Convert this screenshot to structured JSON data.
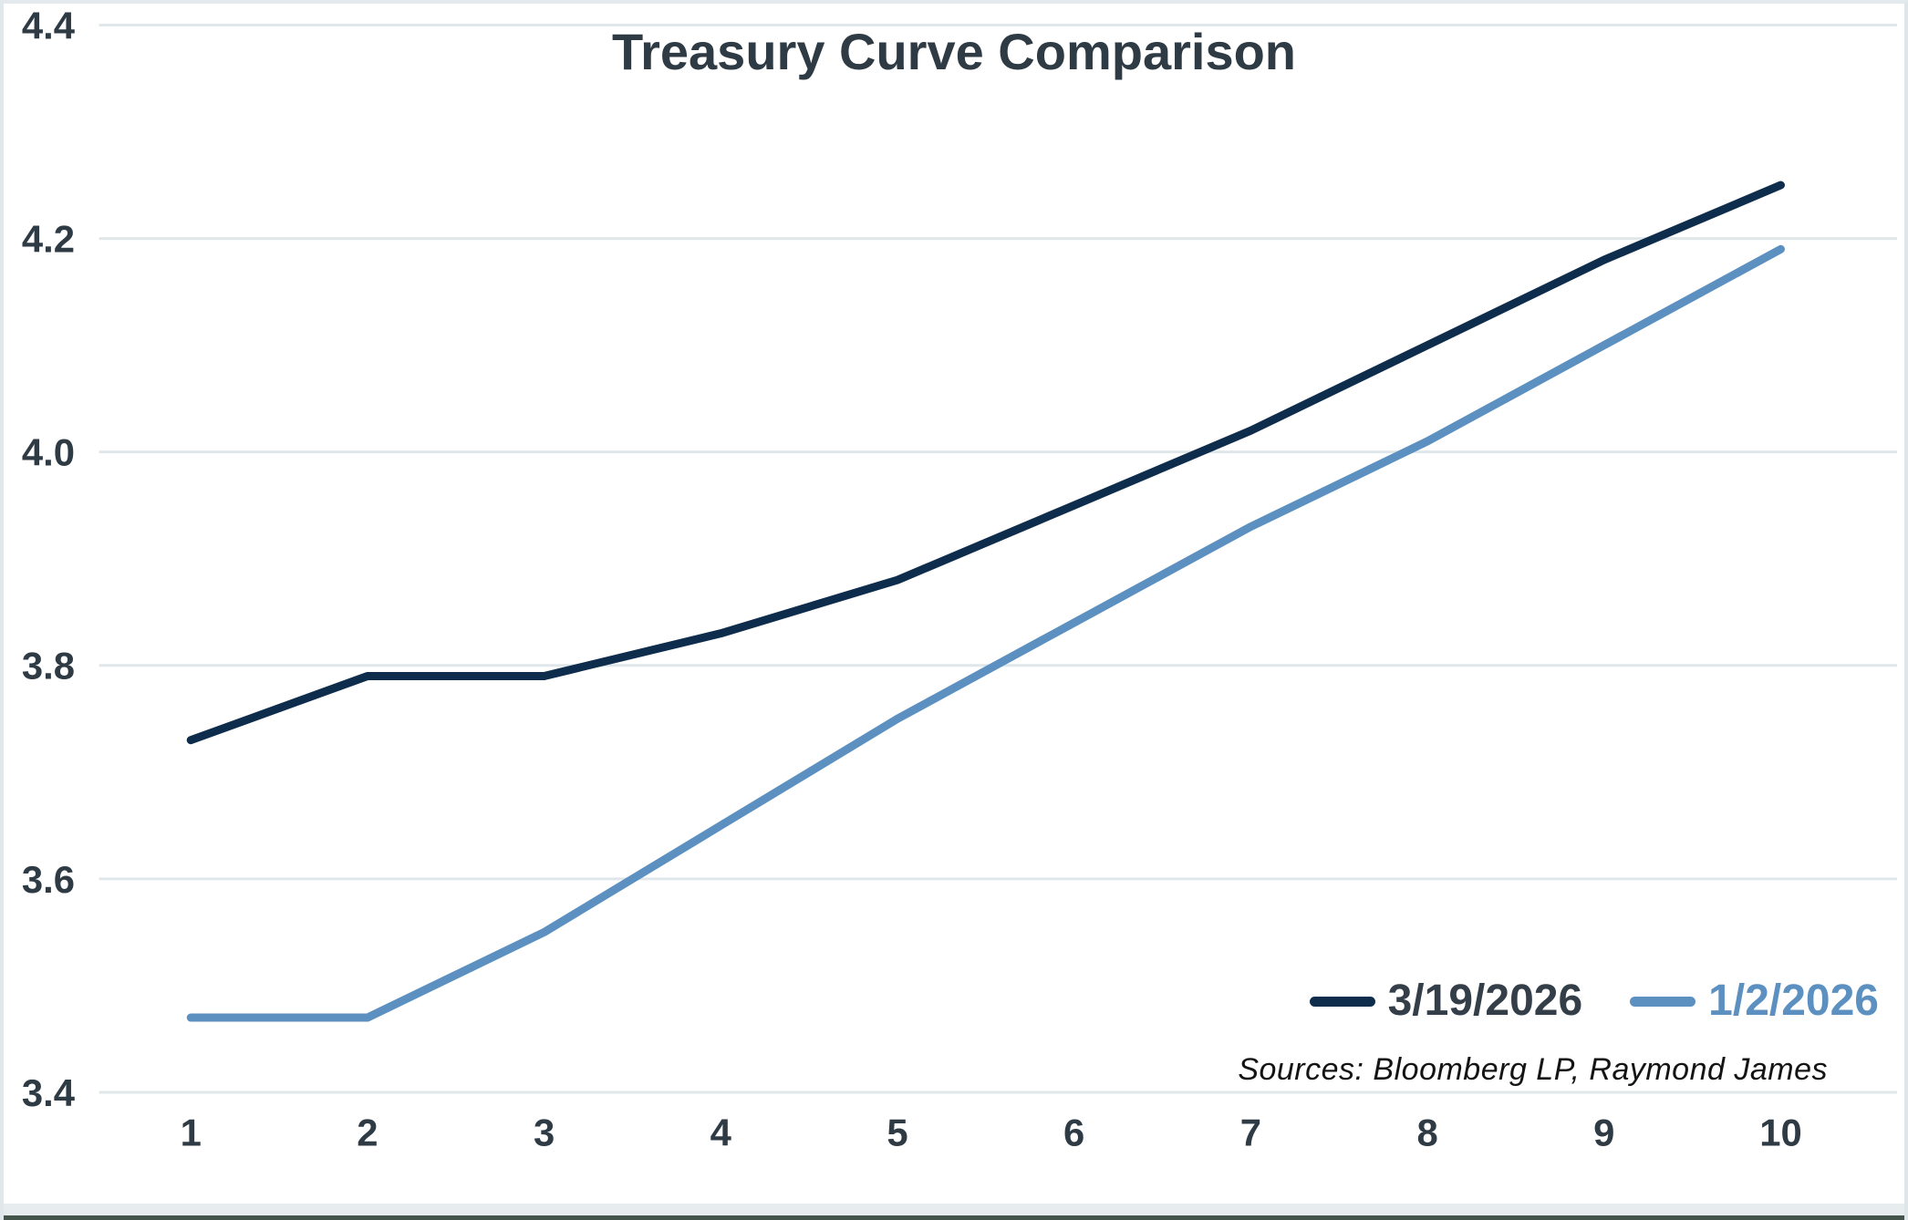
{
  "chart_data": {
    "type": "line",
    "title": "Treasury Curve Comparison",
    "source_note": "Sources: Bloomberg LP, Raymond James",
    "x": [
      1,
      2,
      3,
      4,
      5,
      6,
      7,
      8,
      9,
      10
    ],
    "series": [
      {
        "name": "3/19/2026",
        "color": "#0e2c4c",
        "label_color": "#333e48",
        "values": [
          3.73,
          3.79,
          3.79,
          3.83,
          3.88,
          3.95,
          4.02,
          4.1,
          4.18,
          4.25
        ]
      },
      {
        "name": "1/2/2026",
        "color": "#5c90c0",
        "label_color": "#5c90c0",
        "values": [
          3.47,
          3.47,
          3.55,
          3.65,
          3.75,
          3.84,
          3.93,
          4.01,
          4.1,
          4.19
        ]
      }
    ],
    "xlabel": "",
    "ylabel": "",
    "ylim": [
      3.4,
      4.4
    ],
    "yticks": [
      4.4,
      4.2,
      4.0,
      3.8,
      3.6,
      3.4
    ],
    "ytick_labels": [
      "4.4",
      "4.2",
      "4.0",
      "3.8",
      "3.6",
      "3.4"
    ],
    "grid": true,
    "legend_position": "bottom-right"
  }
}
